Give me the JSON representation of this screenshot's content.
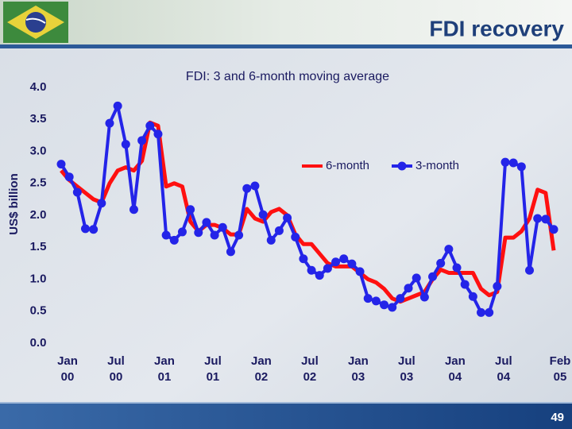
{
  "slide": {
    "title": "FDI recovery",
    "page_number": "49"
  },
  "chart_data": {
    "type": "line",
    "subtitle": "FDI: 3 and 6-month moving average",
    "y_label": "US$ billion",
    "categories": [
      "Jan 00",
      null,
      null,
      null,
      null,
      null,
      "Jul 00",
      null,
      null,
      null,
      null,
      null,
      "Jan 01",
      null,
      null,
      null,
      null,
      null,
      "Jul 01",
      null,
      null,
      null,
      null,
      null,
      "Jan 02",
      null,
      null,
      null,
      null,
      null,
      "Jul 02",
      null,
      null,
      null,
      null,
      null,
      "Jan 03",
      null,
      null,
      null,
      null,
      null,
      "Jul 03",
      null,
      null,
      null,
      null,
      null,
      "Jan 04",
      null,
      null,
      null,
      null,
      null,
      "Jul 04",
      null,
      null,
      null,
      null,
      null,
      null,
      "Feb 05"
    ],
    "ylim": [
      0,
      4
    ],
    "yticks": [
      {
        "value": 0,
        "label": "0.0"
      },
      0.5,
      {
        "value": 1,
        "label": "1.0"
      },
      1.5,
      {
        "value": 2,
        "label": "2.0"
      },
      2.5,
      {
        "value": 3,
        "label": "3.0"
      },
      3.5,
      {
        "value": 4,
        "label": "4.0"
      }
    ],
    "grid": false,
    "legend": "upper right",
    "series": [
      {
        "name": "6-month",
        "color": "#ff1010",
        "markers": false,
        "values": [
          2.7,
          2.55,
          2.45,
          2.35,
          2.25,
          2.2,
          2.5,
          2.7,
          2.75,
          2.7,
          2.85,
          3.45,
          3.4,
          2.45,
          2.5,
          2.45,
          1.9,
          1.75,
          1.85,
          1.85,
          1.8,
          1.7,
          1.7,
          2.1,
          1.95,
          1.9,
          2.05,
          2.1,
          2.0,
          1.7,
          1.55,
          1.55,
          1.4,
          1.25,
          1.2,
          1.2,
          1.2,
          1.1,
          1.0,
          0.95,
          0.85,
          0.7,
          0.65,
          0.7,
          0.75,
          0.8,
          1.0,
          1.15,
          1.1,
          1.1,
          1.1,
          1.1,
          0.85,
          0.75,
          0.8,
          1.65,
          1.65,
          1.75,
          1.95,
          2.4,
          2.35,
          1.45
        ]
      },
      {
        "name": "3-month",
        "color": "#2424e8",
        "markers": true,
        "values": [
          2.8,
          2.6,
          2.36,
          1.79,
          1.78,
          2.19,
          3.44,
          3.71,
          3.11,
          2.09,
          3.17,
          3.4,
          3.27,
          1.69,
          1.61,
          1.74,
          2.09,
          1.73,
          1.89,
          1.69,
          1.81,
          1.43,
          1.69,
          2.42,
          2.46,
          2.01,
          1.61,
          1.76,
          1.96,
          1.66,
          1.32,
          1.14,
          1.06,
          1.17,
          1.27,
          1.32,
          1.24,
          1.12,
          0.7,
          0.66,
          0.6,
          0.56,
          0.7,
          0.86,
          1.02,
          0.72,
          1.04,
          1.25,
          1.47,
          1.18,
          0.92,
          0.73,
          0.48,
          0.48,
          0.89,
          2.83,
          2.82,
          2.76,
          1.14,
          1.95,
          1.94,
          1.78
        ]
      }
    ]
  }
}
